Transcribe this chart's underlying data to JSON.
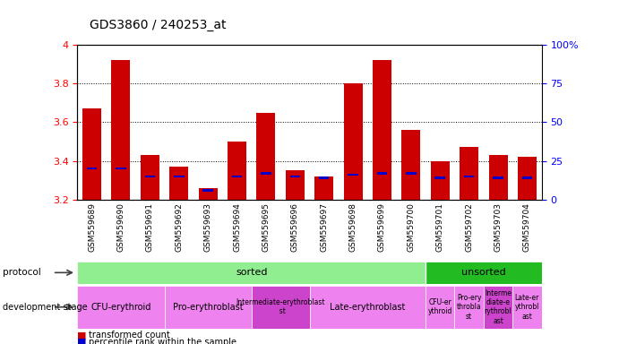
{
  "title": "GDS3860 / 240253_at",
  "samples": [
    "GSM559689",
    "GSM559690",
    "GSM559691",
    "GSM559692",
    "GSM559693",
    "GSM559694",
    "GSM559695",
    "GSM559696",
    "GSM559697",
    "GSM559698",
    "GSM559699",
    "GSM559700",
    "GSM559701",
    "GSM559702",
    "GSM559703",
    "GSM559704"
  ],
  "transformed_count": [
    3.67,
    3.92,
    3.43,
    3.37,
    3.26,
    3.5,
    3.65,
    3.35,
    3.32,
    3.8,
    3.92,
    3.56,
    3.4,
    3.47,
    3.43,
    3.42
  ],
  "percentile_rank_pct": [
    20,
    20,
    15,
    15,
    6,
    15,
    17,
    15,
    14,
    16,
    17,
    17,
    14,
    15,
    14,
    14
  ],
  "ymin": 3.2,
  "ymax": 4.0,
  "yticks": [
    3.2,
    3.4,
    3.6,
    3.8,
    4.0
  ],
  "right_yticks": [
    0,
    25,
    50,
    75,
    100
  ],
  "bar_color": "#cc0000",
  "percentile_color": "#0000cc",
  "xtick_bg": "#c8c8c8",
  "protocol_sorted_color": "#90ee90",
  "protocol_unsorted_color": "#22bb22",
  "dev_colors": [
    "#ee82ee",
    "#ee82ee",
    "#cc44cc",
    "#ee82ee",
    "#ee82ee",
    "#ee82ee",
    "#cc44cc",
    "#ee82ee"
  ],
  "dev_stages": [
    {
      "label": "CFU-erythroid",
      "start": 0,
      "end": 3,
      "color": "#ee82ee"
    },
    {
      "label": "Pro-erythroblast",
      "start": 3,
      "end": 6,
      "color": "#ee82ee"
    },
    {
      "label": "Intermediate-erythroblast\n  st",
      "start": 6,
      "end": 8,
      "color": "#cc44cc"
    },
    {
      "label": "Late-erythroblast",
      "start": 8,
      "end": 12,
      "color": "#ee82ee"
    },
    {
      "label": "CFU-er\nythroid",
      "start": 12,
      "end": 13,
      "color": "#ee82ee"
    },
    {
      "label": "Pro-ery\nthrobla\nst",
      "start": 13,
      "end": 14,
      "color": "#ee82ee"
    },
    {
      "label": "Interme\ndiate-e\nrythrobl\nast",
      "start": 14,
      "end": 15,
      "color": "#cc44cc"
    },
    {
      "label": "Late-er\nythrobl\nast",
      "start": 15,
      "end": 16,
      "color": "#ee82ee"
    }
  ]
}
